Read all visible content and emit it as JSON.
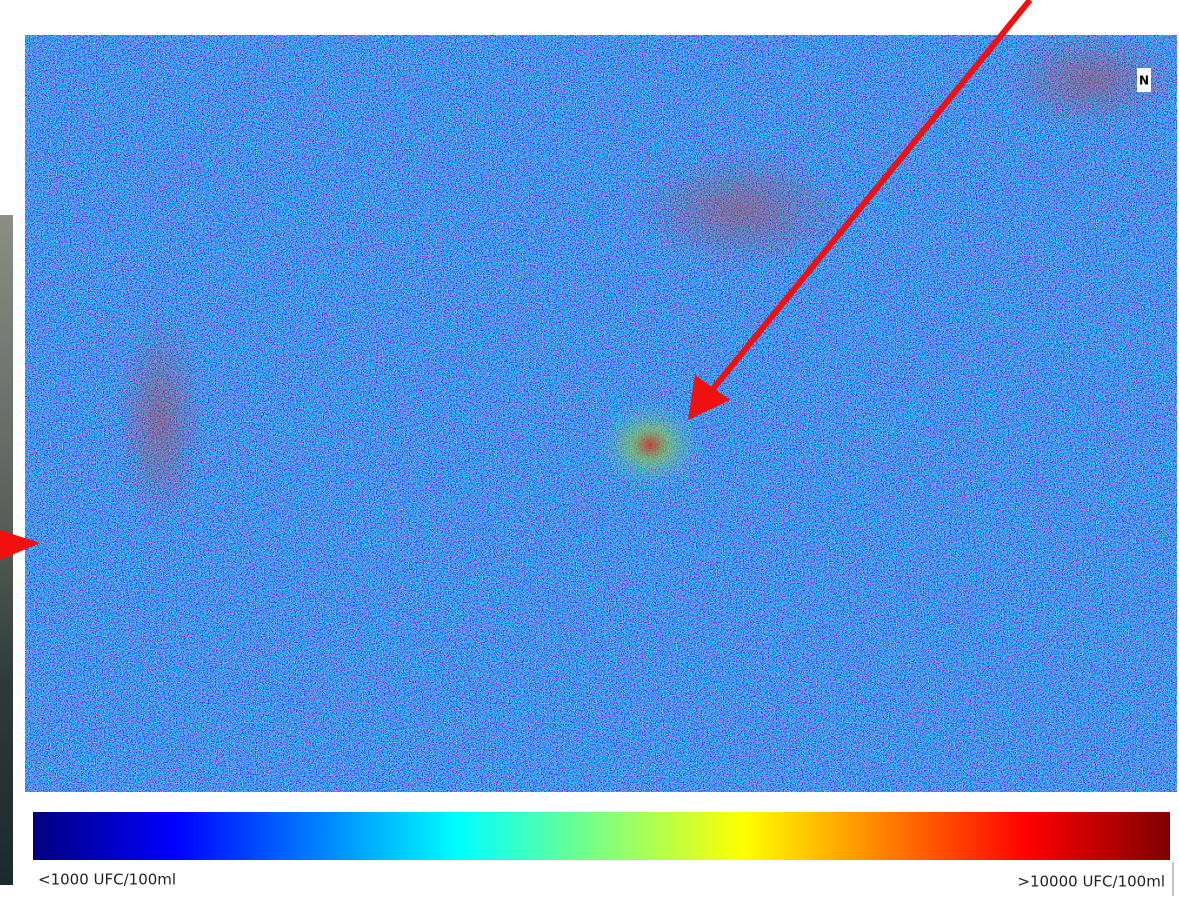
{
  "north_label": "N",
  "legend": {
    "min_label": "<1000 UFC/100ml",
    "max_label": ">10000 UFC/100ml"
  }
}
